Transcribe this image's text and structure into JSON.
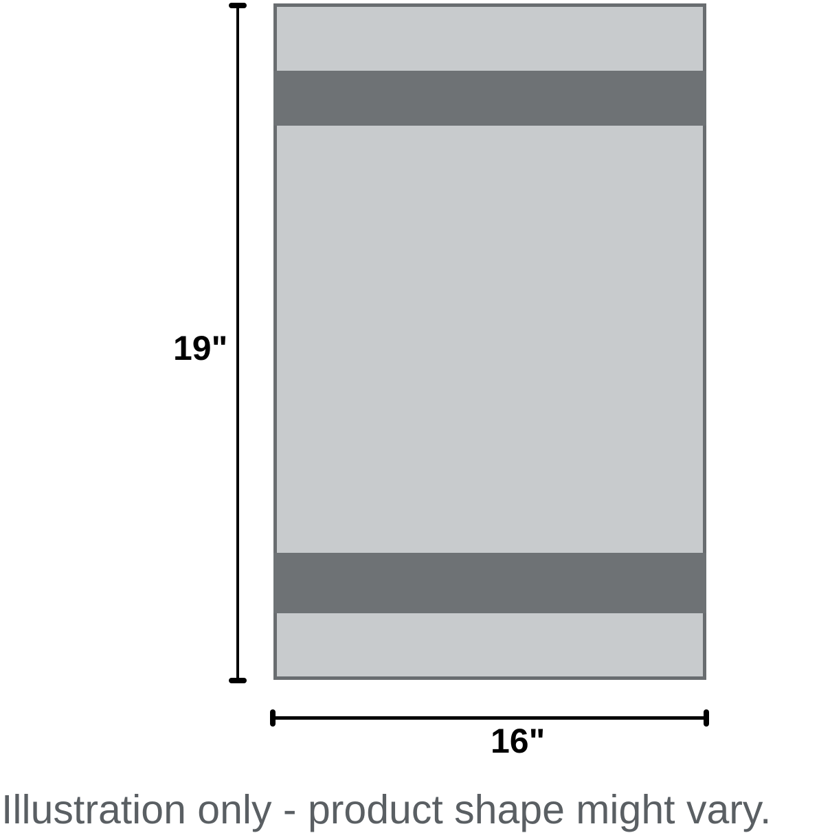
{
  "illustration": {
    "height_label": "19\"",
    "width_label": "16\"",
    "caption": "Illustration only - product shape might vary."
  },
  "colors": {
    "fill-color": "#c8cbcd",
    "stripe-color": "#6e7275",
    "border-color": "#696d70",
    "dimension-color": "#000000",
    "caption-color": "#5a5f63"
  }
}
